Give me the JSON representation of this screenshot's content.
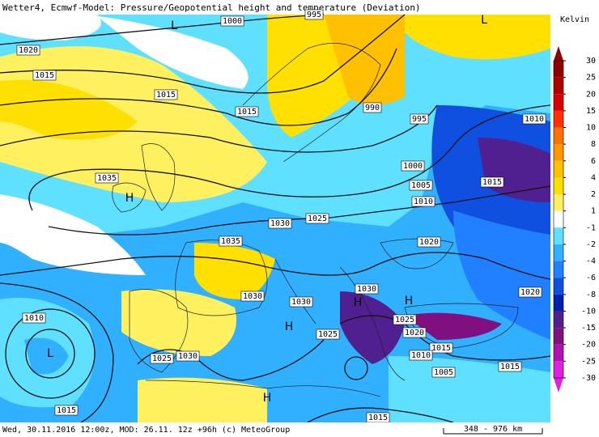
{
  "header": {
    "title": "Wetter4, Ecmwf-Model: Pressure/Geopotential height and temperature (Deviation)"
  },
  "footer": {
    "run": "Wed, 30.11.2016 12:00z, MOD: 26.11. 12z +96h (c) MeteoGroup",
    "scale": "348 - 976 km"
  },
  "legend": {
    "unit": "Kelvin",
    "ticks": [
      30,
      25,
      20,
      15,
      10,
      8,
      6,
      4,
      2,
      1,
      -1,
      -2,
      -4,
      -6,
      -8,
      -10,
      -15,
      -20,
      -25,
      -30
    ],
    "colors": [
      "#900000",
      "#b00000",
      "#d80000",
      "#ff3000",
      "#ff7000",
      "#ff9800",
      "#ffc000",
      "#ffe000",
      "#fff060",
      "#ffffff",
      "#60e0ff",
      "#30b0ff",
      "#2080ff",
      "#1050e0",
      "#0020b0",
      "#502090",
      "#801080",
      "#b010b0",
      "#e020e0"
    ]
  },
  "isobar_labels": [
    1000,
    995,
    1020,
    1015,
    1015,
    1015,
    990,
    995,
    1010,
    1000,
    1035,
    1015,
    1005,
    1010,
    1030,
    1025,
    1035,
    1020,
    1030,
    1030,
    1020,
    1030,
    1010,
    1025,
    1020,
    1025,
    1015,
    1010,
    1025,
    1030,
    1005,
    1015,
    1015,
    1015
  ],
  "pressure_centers": [
    "L",
    "L",
    "H",
    "L",
    "H",
    "H",
    "H",
    "H"
  ]
}
